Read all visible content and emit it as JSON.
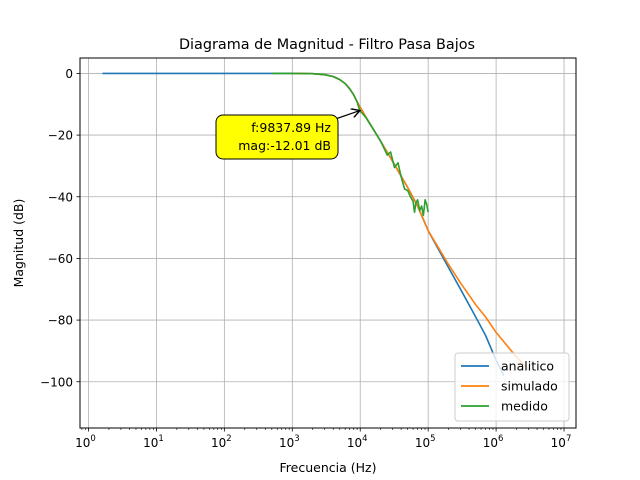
{
  "chart_data": {
    "type": "line",
    "title": "Diagrama de Magnitud - Filtro Pasa Bajos",
    "xlabel": "Frecuencia (Hz)",
    "ylabel": "Magnitud (dB)",
    "xscale": "log",
    "xlim": [
      0.75,
      15000000
    ],
    "ylim": [
      -115,
      5
    ],
    "grid": true,
    "legend_position": "lower-right",
    "x_ticks": [
      {
        "value": 1,
        "base": "10",
        "exp": "0"
      },
      {
        "value": 10,
        "base": "10",
        "exp": "1"
      },
      {
        "value": 100,
        "base": "10",
        "exp": "2"
      },
      {
        "value": 1000,
        "base": "10",
        "exp": "3"
      },
      {
        "value": 10000,
        "base": "10",
        "exp": "4"
      },
      {
        "value": 100000,
        "base": "10",
        "exp": "5"
      },
      {
        "value": 1000000,
        "base": "10",
        "exp": "6"
      },
      {
        "value": 10000000,
        "base": "10",
        "exp": "7"
      }
    ],
    "y_ticks": [
      {
        "value": 0,
        "label": "0"
      },
      {
        "value": -20,
        "label": "−20"
      },
      {
        "value": -40,
        "label": "−40"
      },
      {
        "value": -60,
        "label": "−60"
      },
      {
        "value": -80,
        "label": "−80"
      },
      {
        "value": -100,
        "label": "−100"
      }
    ],
    "series": [
      {
        "name": "analitico",
        "color": "#1f77b4",
        "x": [
          1.6,
          10,
          100,
          1000,
          2000,
          3000,
          4000,
          5000,
          6000,
          7000,
          8000,
          9000,
          10000,
          12000,
          15000,
          20000,
          30000,
          50000,
          70000,
          100000,
          200000,
          300000,
          500000,
          700000,
          1000000,
          1300000
        ],
        "y": [
          0,
          0,
          0,
          0,
          -0.1,
          -0.4,
          -1,
          -2,
          -3.3,
          -5,
          -6.9,
          -9.2,
          -11,
          -14,
          -17.5,
          -22,
          -28.5,
          -37,
          -43,
          -51,
          -63,
          -70,
          -79,
          -85,
          -93,
          -98
        ]
      },
      {
        "name": "simulado",
        "color": "#ff7f0e",
        "x": [
          1000,
          2000,
          3000,
          4000,
          5000,
          6000,
          7000,
          8000,
          9000,
          10000,
          12000,
          15000,
          20000,
          30000,
          50000,
          70000,
          100000,
          200000,
          300000,
          500000,
          700000,
          1000000,
          2000000,
          3000000
        ],
        "y": [
          0,
          -0.1,
          -0.4,
          -1,
          -2,
          -3.3,
          -5,
          -6.9,
          -9.2,
          -11,
          -14,
          -17.5,
          -22,
          -28.5,
          -37,
          -43,
          -51,
          -62,
          -68,
          -75,
          -79,
          -84,
          -92,
          -96
        ]
      },
      {
        "name": "medido",
        "color": "#2ca02c",
        "x": [
          500,
          1000,
          2000,
          3000,
          4000,
          5000,
          6000,
          7000,
          8000,
          9000,
          9837.89,
          12000,
          15000,
          20000,
          25000,
          28000,
          32000,
          36000,
          40000,
          45000,
          50000,
          55000,
          60000,
          63000,
          66000,
          70000,
          75000,
          80000,
          85000,
          90000,
          95000,
          100000
        ],
        "y": [
          0,
          0,
          -0.1,
          -0.4,
          -1,
          -2,
          -3.3,
          -5,
          -6.9,
          -9.2,
          -12.01,
          -14.2,
          -17.5,
          -22,
          -26.5,
          -25.5,
          -30.5,
          -29,
          -33.5,
          -37.5,
          -38,
          -40,
          -41.5,
          -45,
          -42,
          -41,
          -44.5,
          -43,
          -46,
          -41,
          -42.5,
          -45
        ]
      }
    ],
    "annotation": {
      "lines": [
        "f:9837.89 Hz",
        "mag:-12.01 dB"
      ],
      "point_x": 9837.89,
      "point_y": -12.01,
      "box_color": "#ffff00"
    }
  }
}
